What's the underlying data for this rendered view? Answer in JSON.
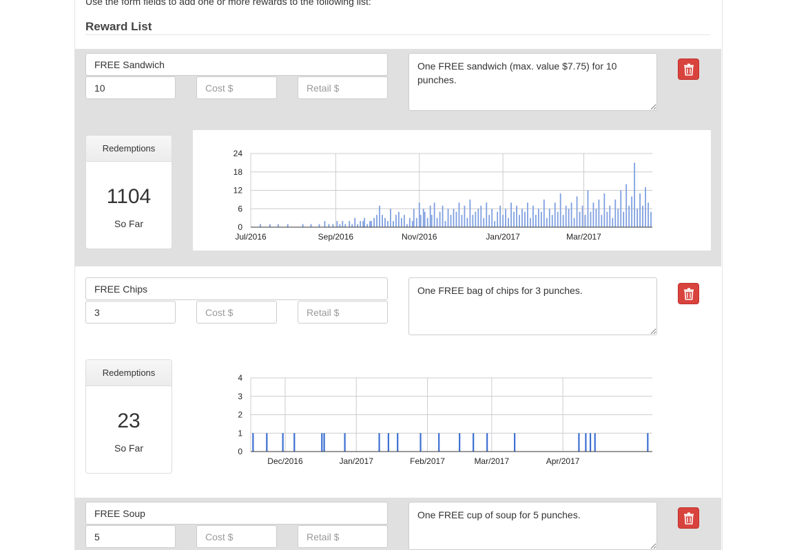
{
  "intro_text": "Use the form fields to add one or more rewards to the following list:",
  "list_title": "Reward List",
  "placeholders": {
    "cost": "Cost $",
    "retail": "Retail $"
  },
  "rewards": [
    {
      "name": "FREE Sandwich",
      "punches": "10",
      "cost": "",
      "retail": "",
      "description": "One FREE sandwich (max. value $7.75) for 10 punches.",
      "redemptions_label": "Redemptions",
      "redemptions_count": "1104",
      "so_far_label": "So Far"
    },
    {
      "name": "FREE Chips",
      "punches": "3",
      "cost": "",
      "retail": "",
      "description": "One FREE bag of chips for 3 punches.",
      "redemptions_label": "Redemptions",
      "redemptions_count": "23",
      "so_far_label": "So Far"
    },
    {
      "name": "FREE Soup",
      "punches": "5",
      "cost": "",
      "retail": "",
      "description": "One FREE cup of soup for 5 punches."
    }
  ],
  "chart_data": [
    {
      "type": "bar",
      "title": "",
      "xlabel": "",
      "ylabel": "",
      "x_range": [
        "2016-07-01",
        "2017-04-20"
      ],
      "ylim": [
        0,
        24
      ],
      "yticks": [
        "0",
        "6",
        "12",
        "18",
        "24"
      ],
      "xticks": [
        {
          "label": "Jul/2016",
          "date": "2016-07-01"
        },
        {
          "label": "Sep/2016",
          "date": "2016-09-01"
        },
        {
          "label": "Nov/2016",
          "date": "2016-11-01"
        },
        {
          "label": "Jan/2017",
          "date": "2017-01-01"
        },
        {
          "label": "Mar/2017",
          "date": "2017-03-01"
        }
      ],
      "color": "#7e9fe0",
      "grid": true,
      "points": [
        [
          "2016-07-08",
          1
        ],
        [
          "2016-07-15",
          1
        ],
        [
          "2016-07-21",
          1
        ],
        [
          "2016-07-28",
          1
        ],
        [
          "2016-08-08",
          1
        ],
        [
          "2016-08-14",
          1
        ],
        [
          "2016-08-20",
          1
        ],
        [
          "2016-08-24",
          2
        ],
        [
          "2016-08-27",
          1
        ],
        [
          "2016-08-30",
          1
        ],
        [
          "2016-09-02",
          2
        ],
        [
          "2016-09-04",
          1
        ],
        [
          "2016-09-06",
          2
        ],
        [
          "2016-09-08",
          1
        ],
        [
          "2016-09-11",
          2
        ],
        [
          "2016-09-13",
          1
        ],
        [
          "2016-09-15",
          3
        ],
        [
          "2016-09-17",
          1
        ],
        [
          "2016-09-19",
          2
        ],
        [
          "2016-09-21",
          2
        ],
        [
          "2016-09-22",
          3
        ],
        [
          "2016-09-24",
          1
        ],
        [
          "2016-09-26",
          2
        ],
        [
          "2016-09-27",
          2
        ],
        [
          "2016-09-29",
          3
        ],
        [
          "2016-10-01",
          4
        ],
        [
          "2016-10-03",
          7
        ],
        [
          "2016-10-05",
          4
        ],
        [
          "2016-10-07",
          3
        ],
        [
          "2016-10-09",
          2
        ],
        [
          "2016-10-11",
          6
        ],
        [
          "2016-10-13",
          2
        ],
        [
          "2016-10-15",
          4
        ],
        [
          "2016-10-17",
          5
        ],
        [
          "2016-10-19",
          3
        ],
        [
          "2016-10-21",
          4
        ],
        [
          "2016-10-23",
          1
        ],
        [
          "2016-10-25",
          3
        ],
        [
          "2016-10-27",
          2
        ],
        [
          "2016-10-28",
          6
        ],
        [
          "2016-10-30",
          3
        ],
        [
          "2016-11-01",
          8
        ],
        [
          "2016-11-02",
          4
        ],
        [
          "2016-11-04",
          6
        ],
        [
          "2016-11-05",
          5
        ],
        [
          "2016-11-07",
          3
        ],
        [
          "2016-11-09",
          7
        ],
        [
          "2016-11-10",
          4
        ],
        [
          "2016-11-12",
          8
        ],
        [
          "2016-11-14",
          3
        ],
        [
          "2016-11-16",
          5
        ],
        [
          "2016-11-18",
          7
        ],
        [
          "2016-11-20",
          2
        ],
        [
          "2016-11-22",
          6
        ],
        [
          "2016-11-24",
          4
        ],
        [
          "2016-11-26",
          6
        ],
        [
          "2016-11-28",
          5
        ],
        [
          "2016-11-30",
          8
        ],
        [
          "2016-12-02",
          4
        ],
        [
          "2016-12-04",
          7
        ],
        [
          "2016-12-06",
          3
        ],
        [
          "2016-12-08",
          9
        ],
        [
          "2016-12-10",
          4
        ],
        [
          "2016-12-12",
          5
        ],
        [
          "2016-12-14",
          6
        ],
        [
          "2016-12-16",
          7
        ],
        [
          "2016-12-18",
          3
        ],
        [
          "2016-12-20",
          8
        ],
        [
          "2016-12-22",
          4
        ],
        [
          "2016-12-24",
          6
        ],
        [
          "2016-12-26",
          2
        ],
        [
          "2016-12-28",
          5
        ],
        [
          "2016-12-30",
          7
        ],
        [
          "2017-01-01",
          4
        ],
        [
          "2017-01-03",
          6
        ],
        [
          "2017-01-05",
          3
        ],
        [
          "2017-01-07",
          8
        ],
        [
          "2017-01-09",
          5
        ],
        [
          "2017-01-11",
          7
        ],
        [
          "2017-01-13",
          4
        ],
        [
          "2017-01-15",
          6
        ],
        [
          "2017-01-17",
          5
        ],
        [
          "2017-01-19",
          8
        ],
        [
          "2017-01-21",
          3
        ],
        [
          "2017-01-23",
          7
        ],
        [
          "2017-01-25",
          4
        ],
        [
          "2017-01-27",
          6
        ],
        [
          "2017-01-29",
          5
        ],
        [
          "2017-01-31",
          9
        ],
        [
          "2017-02-02",
          3
        ],
        [
          "2017-02-04",
          6
        ],
        [
          "2017-02-06",
          4
        ],
        [
          "2017-02-08",
          8
        ],
        [
          "2017-02-10",
          5
        ],
        [
          "2017-02-12",
          11
        ],
        [
          "2017-02-14",
          4
        ],
        [
          "2017-02-16",
          7
        ],
        [
          "2017-02-18",
          6
        ],
        [
          "2017-02-20",
          8
        ],
        [
          "2017-02-22",
          3
        ],
        [
          "2017-02-24",
          10
        ],
        [
          "2017-02-26",
          5
        ],
        [
          "2017-02-28",
          7
        ],
        [
          "2017-03-02",
          4
        ],
        [
          "2017-03-04",
          12
        ],
        [
          "2017-03-06",
          5
        ],
        [
          "2017-03-08",
          8
        ],
        [
          "2017-03-10",
          6
        ],
        [
          "2017-03-12",
          9
        ],
        [
          "2017-03-14",
          4
        ],
        [
          "2017-03-16",
          11
        ],
        [
          "2017-03-18",
          5
        ],
        [
          "2017-03-20",
          7
        ],
        [
          "2017-03-22",
          3
        ],
        [
          "2017-03-24",
          9
        ],
        [
          "2017-03-26",
          6
        ],
        [
          "2017-03-28",
          12
        ],
        [
          "2017-03-30",
          5
        ],
        [
          "2017-04-01",
          14
        ],
        [
          "2017-04-03",
          7
        ],
        [
          "2017-04-05",
          10
        ],
        [
          "2017-04-07",
          21
        ],
        [
          "2017-04-09",
          6
        ],
        [
          "2017-04-11",
          11
        ],
        [
          "2017-04-13",
          7
        ],
        [
          "2017-04-15",
          13
        ],
        [
          "2017-04-17",
          8
        ],
        [
          "2017-04-19",
          5
        ]
      ]
    },
    {
      "type": "bar",
      "title": "",
      "xlabel": "",
      "ylabel": "",
      "x_range": [
        "2016-11-16",
        "2017-05-10"
      ],
      "ylim": [
        0,
        4
      ],
      "yticks": [
        "0",
        "1",
        "2",
        "3",
        "4"
      ],
      "xticks": [
        {
          "label": "Dec/2016",
          "date": "2016-12-01"
        },
        {
          "label": "Jan/2017",
          "date": "2017-01-01"
        },
        {
          "label": "Feb/2017",
          "date": "2017-02-01"
        },
        {
          "label": "Mar/2017",
          "date": "2017-03-01"
        },
        {
          "label": "Apr/2017",
          "date": "2017-04-01"
        }
      ],
      "color": "#3c6fd1",
      "grid": true,
      "points": [
        [
          "2016-11-17",
          1
        ],
        [
          "2016-11-23",
          1
        ],
        [
          "2016-11-30",
          1
        ],
        [
          "2016-12-05",
          1
        ],
        [
          "2016-12-17",
          1
        ],
        [
          "2016-12-18",
          1
        ],
        [
          "2016-12-27",
          1
        ],
        [
          "2017-01-11",
          1
        ],
        [
          "2017-01-15",
          1
        ],
        [
          "2017-01-19",
          1
        ],
        [
          "2017-01-29",
          1
        ],
        [
          "2017-02-06",
          1
        ],
        [
          "2017-02-15",
          1
        ],
        [
          "2017-02-21",
          1
        ],
        [
          "2017-02-27",
          1
        ],
        [
          "2017-03-11",
          1
        ],
        [
          "2017-04-08",
          1
        ],
        [
          "2017-04-11",
          1
        ],
        [
          "2017-04-13",
          1
        ],
        [
          "2017-04-15",
          1
        ],
        [
          "2017-05-08",
          1
        ]
      ]
    }
  ]
}
